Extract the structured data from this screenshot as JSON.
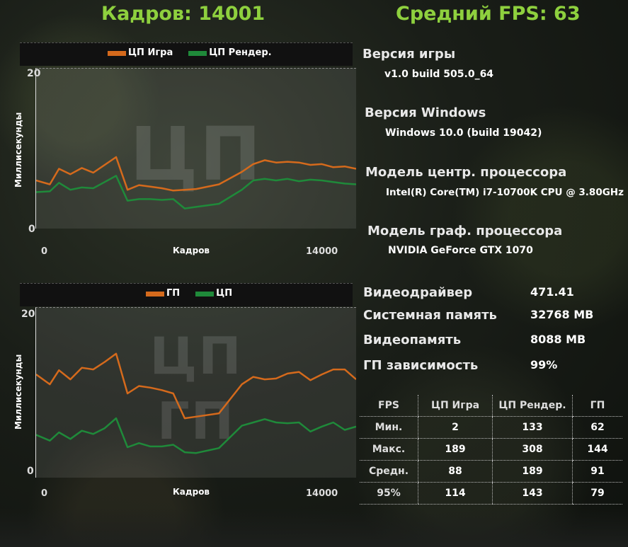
{
  "header": {
    "frames": "Кадров: 14001",
    "avg_fps": "Средний FPS: 63"
  },
  "colors": {
    "accent_green": "#8ed03e",
    "series_orange": "#d56a1c",
    "series_green": "#1f8a3a"
  },
  "cpu_chart": {
    "watermark": "ЦП",
    "ylabel": "Миллисекунды",
    "xlabel": "Кадров",
    "yticks": [
      "20",
      "0"
    ],
    "xticks": [
      "0",
      "14000"
    ],
    "legend": [
      {
        "name": "ЦП Игра",
        "color": "#d56a1c"
      },
      {
        "name": "ЦП Рендер.",
        "color": "#1f8a3a"
      }
    ]
  },
  "gpu_chart": {
    "watermark_top": "ЦП",
    "watermark_bottom": "ГП",
    "ylabel": "Миллисекунды",
    "xlabel": "Кадров",
    "yticks": [
      "20",
      "0"
    ],
    "xticks": [
      "0",
      "14000"
    ],
    "legend": [
      {
        "name": "ГП",
        "color": "#d56a1c"
      },
      {
        "name": "ЦП",
        "color": "#1f8a3a"
      }
    ]
  },
  "chart_data": [
    {
      "type": "line",
      "title": "",
      "xlabel": "Кадров",
      "ylabel": "Миллисекунды",
      "xlim": [
        0,
        14000
      ],
      "ylim": [
        0,
        20
      ],
      "x": [
        0,
        600,
        1000,
        1500,
        2000,
        2500,
        3000,
        3500,
        4000,
        4500,
        5000,
        5500,
        6000,
        6500,
        7000,
        8000,
        9000,
        9500,
        10000,
        10500,
        11000,
        11500,
        12000,
        12500,
        13000,
        13500,
        14000
      ],
      "series": [
        {
          "name": "ЦП Игра",
          "color": "#d56a1c",
          "values": [
            6.0,
            5.5,
            7.5,
            6.8,
            7.6,
            7.0,
            8.0,
            9.0,
            4.8,
            5.4,
            5.2,
            5.0,
            4.7,
            4.8,
            4.9,
            5.5,
            7.1,
            8.1,
            8.6,
            8.3,
            8.4,
            8.3,
            8.0,
            8.1,
            7.7,
            7.8,
            7.5
          ]
        },
        {
          "name": "ЦП Рендер.",
          "color": "#1f8a3a",
          "values": [
            4.5,
            4.6,
            5.7,
            4.8,
            5.1,
            5.0,
            5.8,
            6.6,
            3.4,
            3.6,
            3.6,
            3.5,
            3.6,
            2.4,
            2.6,
            3.0,
            4.8,
            6.0,
            6.2,
            6.0,
            6.2,
            5.9,
            6.1,
            6.0,
            5.8,
            5.6,
            5.5
          ]
        }
      ]
    },
    {
      "type": "line",
      "title": "",
      "xlabel": "Кадров",
      "ylabel": "Миллисекунды",
      "xlim": [
        0,
        14000
      ],
      "ylim": [
        0,
        20
      ],
      "x": [
        0,
        600,
        1000,
        1500,
        2000,
        2500,
        3000,
        3500,
        4000,
        4500,
        5000,
        5500,
        6000,
        6500,
        7000,
        8000,
        9000,
        9500,
        10000,
        10500,
        11000,
        11500,
        12000,
        12500,
        13000,
        13500,
        14000
      ],
      "series": [
        {
          "name": "ГП",
          "color": "#d56a1c",
          "values": [
            12.3,
            11.1,
            12.8,
            11.7,
            13.1,
            12.9,
            13.8,
            14.8,
            10.0,
            10.9,
            10.7,
            10.4,
            10.0,
            7.0,
            7.2,
            7.6,
            11.1,
            12.0,
            11.7,
            11.8,
            12.4,
            12.6,
            11.6,
            12.3,
            12.9,
            12.9,
            11.7
          ]
        },
        {
          "name": "ЦП",
          "color": "#1f8a3a",
          "values": [
            5.0,
            4.3,
            5.3,
            4.5,
            5.5,
            5.1,
            5.8,
            7.0,
            3.5,
            4.0,
            3.6,
            3.6,
            3.8,
            2.9,
            2.8,
            3.4,
            6.1,
            6.5,
            6.9,
            6.5,
            6.4,
            6.5,
            5.4,
            6.0,
            6.5,
            5.6,
            6.0
          ]
        }
      ]
    }
  ],
  "info": {
    "game_version_label": "Версия игры",
    "game_version_value": "v1.0 build 505.0_64",
    "windows_label": "Версия Windows",
    "windows_value": "Windows 10.0 (build 19042)",
    "cpu_model_label": "Модель центр. процессора",
    "cpu_model_value": "Intel(R) Core(TM) i7-10700K CPU @ 3.80GHz",
    "gpu_model_label": "Модель граф. процессора",
    "gpu_model_value": "NVIDIA GeForce GTX 1070"
  },
  "specs": [
    {
      "label": "Видеодрайвер",
      "value": "471.41"
    },
    {
      "label": "Системная память",
      "value": "32768 MB"
    },
    {
      "label": "Видеопамять",
      "value": "8088 MB"
    },
    {
      "label": "ГП зависимость",
      "value": "99%"
    }
  ],
  "stats": {
    "headers": [
      "FPS",
      "ЦП Игра",
      "ЦП Рендер.",
      "ГП"
    ],
    "rows": [
      {
        "label": "Мин.",
        "cpu_game": "2",
        "cpu_render": "133",
        "gpu": "62"
      },
      {
        "label": "Макс.",
        "cpu_game": "189",
        "cpu_render": "308",
        "gpu": "144"
      },
      {
        "label": "Средн.",
        "cpu_game": "88",
        "cpu_render": "189",
        "gpu": "91"
      },
      {
        "label": "95%",
        "cpu_game": "114",
        "cpu_render": "143",
        "gpu": "79"
      }
    ]
  }
}
